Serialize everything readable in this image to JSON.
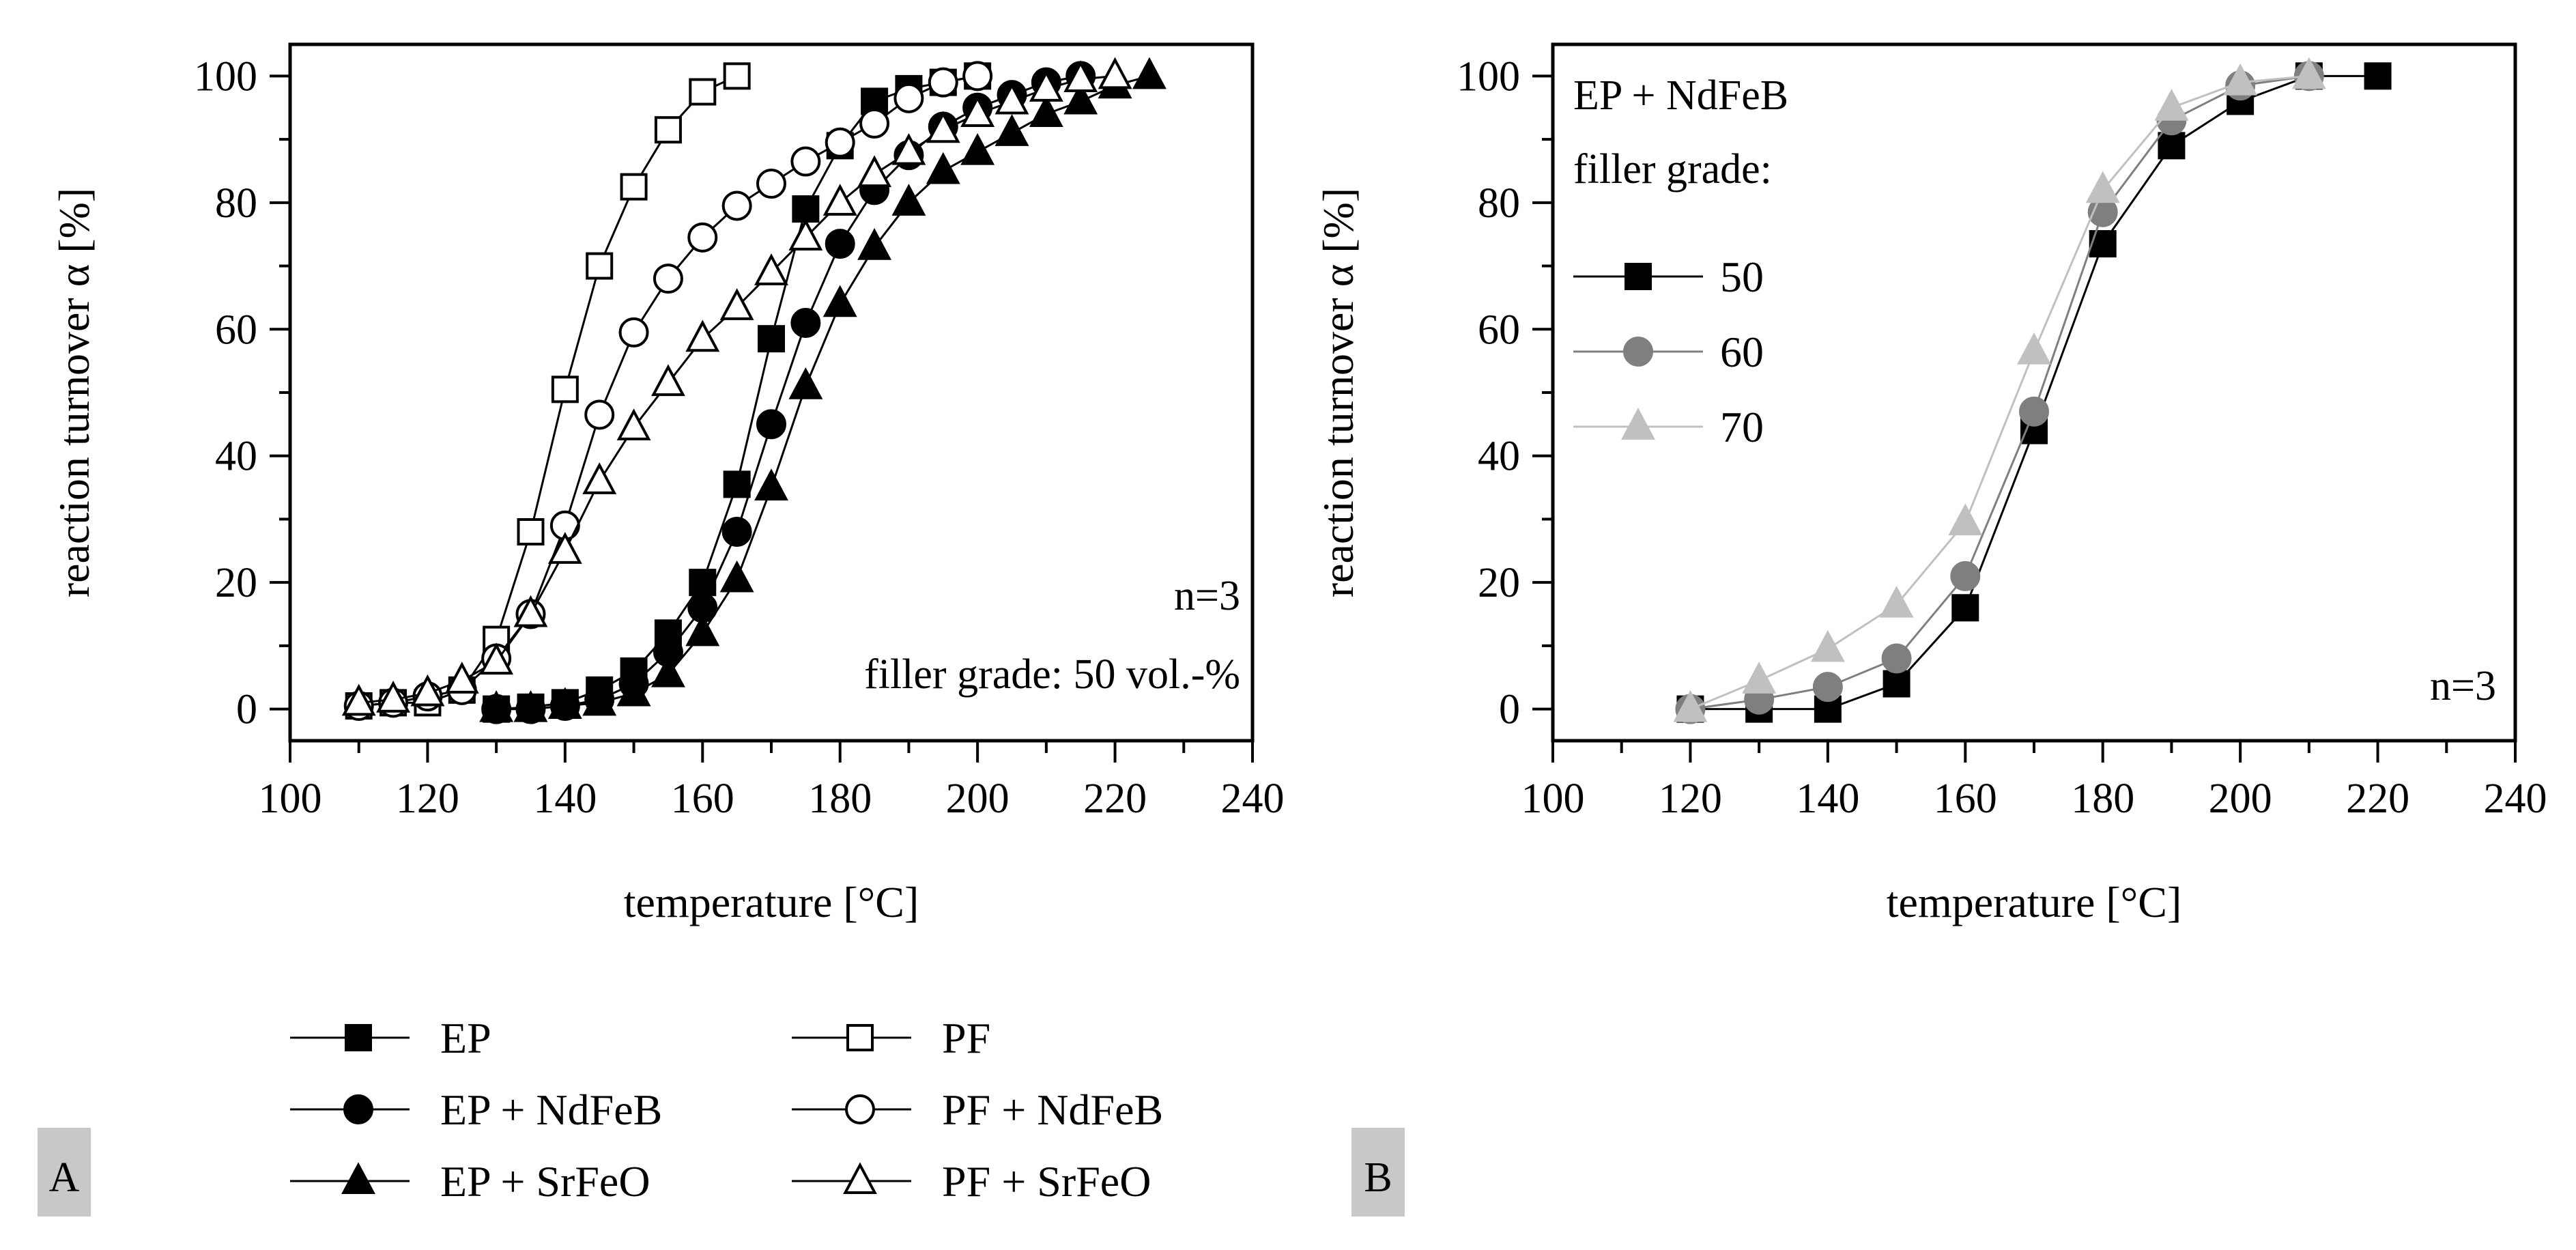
{
  "chart_data": [
    {
      "type": "line",
      "panel": "A",
      "xlabel": "temperature [°C]",
      "ylabel": "reaction turnover α [%]",
      "xlim": [
        100,
        240
      ],
      "ylim": [
        -5,
        105
      ],
      "xticks": [
        100,
        120,
        140,
        160,
        180,
        200,
        220,
        240
      ],
      "yticks": [
        0,
        20,
        40,
        60,
        80,
        100
      ],
      "annotations": [
        "n=3",
        "filler grade: 50 vol.-%"
      ],
      "series": [
        {
          "name": "EP",
          "marker": "square",
          "fill": "#000000",
          "x": [
            130,
            135,
            140,
            145,
            150,
            155,
            160,
            165,
            170,
            175,
            180,
            185,
            190,
            195,
            200
          ],
          "y": [
            0,
            0.3,
            1,
            3,
            6,
            12,
            20,
            35.5,
            58.5,
            79,
            89,
            96,
            98,
            99,
            100
          ]
        },
        {
          "name": "EP + NdFeB",
          "marker": "circle",
          "fill": "#000000",
          "x": [
            130,
            135,
            140,
            145,
            150,
            155,
            160,
            165,
            170,
            175,
            180,
            185,
            190,
            195,
            200,
            205,
            210,
            215
          ],
          "y": [
            0,
            0,
            0.5,
            1.5,
            4,
            9,
            16,
            28,
            45,
            61,
            73.5,
            82,
            87.5,
            92,
            95,
            97,
            99,
            100
          ]
        },
        {
          "name": "EP + SrFeO",
          "marker": "triangle",
          "fill": "#000000",
          "x": [
            130,
            135,
            140,
            145,
            150,
            155,
            160,
            165,
            170,
            175,
            180,
            185,
            190,
            195,
            200,
            205,
            210,
            215,
            220,
            225
          ],
          "y": [
            0,
            0,
            0.5,
            1,
            2.5,
            5.5,
            12,
            20.5,
            35,
            51,
            64,
            73,
            80,
            85,
            88,
            91,
            94,
            96,
            98.5,
            100
          ]
        },
        {
          "name": "PF",
          "marker": "square",
          "fill": "#ffffff",
          "x": [
            110,
            115,
            120,
            125,
            130,
            135,
            140,
            145,
            150,
            155,
            160,
            165
          ],
          "y": [
            0.5,
            1,
            1,
            3,
            11,
            28,
            50.5,
            70,
            82.5,
            91.5,
            97.5,
            100
          ]
        },
        {
          "name": "PF + NdFeB",
          "marker": "circle",
          "fill": "#ffffff",
          "x": [
            110,
            115,
            120,
            125,
            130,
            135,
            140,
            145,
            150,
            155,
            160,
            165,
            170,
            175,
            180,
            185,
            190,
            195,
            200
          ],
          "y": [
            0.5,
            1,
            2,
            3,
            8,
            15,
            29,
            46.5,
            59.5,
            68,
            74.5,
            79.5,
            83,
            86.5,
            89.5,
            92.5,
            96.5,
            99,
            100
          ]
        },
        {
          "name": "PF + SrFeO",
          "marker": "triangle",
          "fill": "#ffffff",
          "x": [
            110,
            115,
            120,
            125,
            130,
            135,
            140,
            145,
            150,
            155,
            160,
            165,
            170,
            175,
            180,
            185,
            190,
            195,
            200,
            205,
            210,
            215,
            220
          ],
          "y": [
            1,
            1.5,
            2.5,
            4.5,
            7.5,
            15,
            25,
            36,
            44.5,
            51.5,
            58.5,
            63.5,
            69,
            74.5,
            80,
            84.5,
            88,
            91.5,
            94,
            96,
            98,
            99.5,
            100
          ]
        }
      ],
      "legend": [
        {
          "label": "EP",
          "marker": "square",
          "fill": "#000000"
        },
        {
          "label": "PF",
          "marker": "square",
          "fill": "#ffffff"
        },
        {
          "label": "EP + NdFeB",
          "marker": "circle",
          "fill": "#000000"
        },
        {
          "label": "PF + NdFeB",
          "marker": "circle",
          "fill": "#ffffff"
        },
        {
          "label": "EP + SrFeO",
          "marker": "triangle",
          "fill": "#000000"
        },
        {
          "label": "PF + SrFeO",
          "marker": "triangle",
          "fill": "#ffffff"
        }
      ]
    },
    {
      "type": "line",
      "panel": "B",
      "xlabel": "temperature [°C]",
      "ylabel": "reaction turnover α [%]",
      "xlim": [
        100,
        240
      ],
      "ylim": [
        -5,
        105
      ],
      "xticks": [
        100,
        120,
        140,
        160,
        180,
        200,
        220,
        240
      ],
      "yticks": [
        0,
        20,
        40,
        60,
        80,
        100
      ],
      "annotations": [
        "n=3"
      ],
      "legend_title": [
        "EP + NdFeB",
        "filler grade:"
      ],
      "series": [
        {
          "name": "50",
          "marker": "square",
          "fill": "#000000",
          "stroke": "#000000",
          "x": [
            120,
            130,
            140,
            150,
            160,
            170,
            180,
            190,
            200,
            210,
            220
          ],
          "y": [
            0,
            0,
            0,
            4,
            16,
            44,
            73.5,
            89,
            96,
            100,
            100
          ]
        },
        {
          "name": "60",
          "marker": "circle",
          "fill": "#7f7f7f",
          "stroke": "#7f7f7f",
          "x": [
            120,
            130,
            140,
            150,
            160,
            170,
            180,
            190,
            200,
            210
          ],
          "y": [
            0,
            1.5,
            3.5,
            8,
            21,
            47,
            78.5,
            93,
            98.5,
            100
          ]
        },
        {
          "name": "70",
          "marker": "triangle",
          "fill": "#c0c0c0",
          "stroke": "#c0c0c0",
          "x": [
            120,
            130,
            140,
            150,
            160,
            170,
            180,
            190,
            200,
            210
          ],
          "y": [
            0,
            4.5,
            9.5,
            16.5,
            29.5,
            56.5,
            82,
            95,
            99,
            100
          ]
        }
      ]
    }
  ],
  "panel_labels": [
    "A",
    "B"
  ]
}
